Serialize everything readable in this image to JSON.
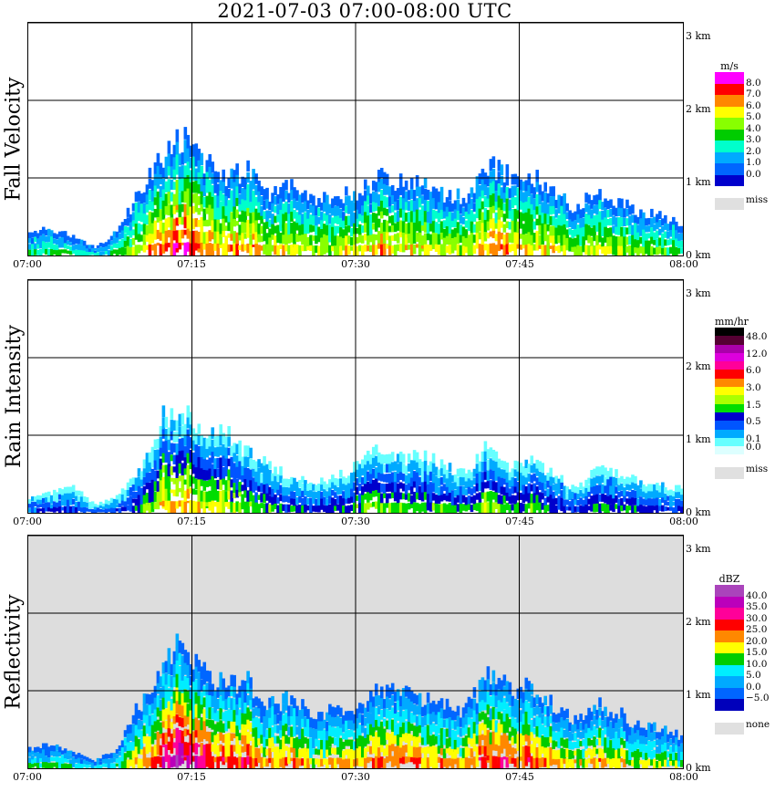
{
  "title": "2021-07-03   07:00-08:00 UTC",
  "chart_data": [
    {
      "type": "heatmap",
      "ylabel": "Fall Velocity",
      "xlabel": "",
      "xlim": [
        0,
        60
      ],
      "ylim": [
        0,
        3
      ],
      "x_ticks": [
        "07:00",
        "07:15",
        "07:30",
        "07:45",
        "08:00"
      ],
      "height_ticks": [
        "0 km",
        "1 km",
        "2 km",
        "3 km"
      ],
      "legend_unit": "m/s",
      "legend_labels": [
        "8.0",
        "7.0",
        "6.0",
        "5.0",
        "4.0",
        "3.0",
        "2.0",
        "1.0",
        "0.0"
      ],
      "legend_colors": [
        "#ff00ff",
        "#ff0000",
        "#ff8800",
        "#ffff00",
        "#88ff00",
        "#00cc00",
        "#00ffcc",
        "#00aaff",
        "#0066ff",
        "#0000cc"
      ],
      "missing_label": "miss",
      "background": "#ffffff",
      "echo_tops_km": [
        [
          0,
          0.3
        ],
        [
          2,
          0.35
        ],
        [
          4,
          0.25
        ],
        [
          6,
          0.1
        ],
        [
          8,
          0.3
        ],
        [
          10,
          0.8
        ],
        [
          12,
          1.3
        ],
        [
          14,
          1.5
        ],
        [
          16,
          1.2
        ],
        [
          18,
          1.0
        ],
        [
          20,
          1.1
        ],
        [
          22,
          0.8
        ],
        [
          24,
          0.9
        ],
        [
          26,
          0.7
        ],
        [
          28,
          0.75
        ],
        [
          30,
          0.8
        ],
        [
          32,
          1.0
        ],
        [
          34,
          0.95
        ],
        [
          36,
          0.9
        ],
        [
          38,
          0.8
        ],
        [
          40,
          0.75
        ],
        [
          42,
          1.2
        ],
        [
          44,
          1.0
        ],
        [
          46,
          1.05
        ],
        [
          48,
          0.8
        ],
        [
          50,
          0.6
        ],
        [
          52,
          0.85
        ],
        [
          54,
          0.7
        ],
        [
          56,
          0.55
        ],
        [
          58,
          0.5
        ],
        [
          60,
          0.4
        ]
      ]
    },
    {
      "type": "heatmap",
      "ylabel": "Rain Intensity",
      "xlabel": "",
      "xlim": [
        0,
        60
      ],
      "ylim": [
        0,
        3
      ],
      "x_ticks": [
        "07:00",
        "07:15",
        "07:30",
        "07:45",
        "08:00"
      ],
      "height_ticks": [
        "0 km",
        "1 km",
        "2 km",
        "3 km"
      ],
      "legend_unit": "mm/hr",
      "legend_labels": [
        "48.0",
        "",
        "12.0",
        "",
        "6.0",
        "",
        "3.0",
        "",
        "1.5",
        "",
        "0.5",
        "",
        "0.1",
        "0.0"
      ],
      "legend_colors": [
        "#000000",
        "#550033",
        "#aa00aa",
        "#dd00dd",
        "#ff0099",
        "#ff0000",
        "#ff8800",
        "#ffff00",
        "#aaff00",
        "#00dd00",
        "#0000cc",
        "#0055ff",
        "#00aaff",
        "#66ffff",
        "#ddffff"
      ],
      "missing_label": "miss",
      "background": "#ffffff",
      "echo_tops_km": [
        [
          0,
          0.2
        ],
        [
          2,
          0.25
        ],
        [
          4,
          0.35
        ],
        [
          6,
          0.1
        ],
        [
          8,
          0.2
        ],
        [
          10,
          0.5
        ],
        [
          12,
          1.2
        ],
        [
          14,
          1.3
        ],
        [
          16,
          1.1
        ],
        [
          18,
          1.0
        ],
        [
          20,
          0.8
        ],
        [
          22,
          0.6
        ],
        [
          24,
          0.45
        ],
        [
          26,
          0.4
        ],
        [
          28,
          0.45
        ],
        [
          30,
          0.6
        ],
        [
          32,
          0.8
        ],
        [
          34,
          0.7
        ],
        [
          36,
          0.75
        ],
        [
          38,
          0.6
        ],
        [
          40,
          0.5
        ],
        [
          42,
          0.9
        ],
        [
          44,
          0.6
        ],
        [
          46,
          0.65
        ],
        [
          48,
          0.5
        ],
        [
          50,
          0.3
        ],
        [
          52,
          0.55
        ],
        [
          54,
          0.5
        ],
        [
          56,
          0.4
        ],
        [
          58,
          0.35
        ],
        [
          60,
          0.3
        ]
      ]
    },
    {
      "type": "heatmap",
      "ylabel": "Reflectivity",
      "xlabel": "",
      "xlim": [
        0,
        60
      ],
      "ylim": [
        0,
        3
      ],
      "x_ticks": [
        "07:00",
        "07:15",
        "07:30",
        "07:45",
        "08:00"
      ],
      "height_ticks": [
        "0 km",
        "1 km",
        "2 km",
        "3 km"
      ],
      "legend_unit": "dBZ",
      "legend_labels": [
        "40.0",
        "35.0",
        "30.0",
        "25.0",
        "20.0",
        "15.0",
        "10.0",
        "5.0",
        "0.0",
        "−5.0"
      ],
      "legend_colors": [
        "#aa44bb",
        "#bb00bb",
        "#ff0099",
        "#ff0000",
        "#ff8800",
        "#ffff00",
        "#00cc00",
        "#00eeff",
        "#00aaff",
        "#0066ff",
        "#0000bb"
      ],
      "missing_label": "none",
      "background": "#dddddd",
      "echo_tops_km": [
        [
          0,
          0.25
        ],
        [
          2,
          0.3
        ],
        [
          4,
          0.2
        ],
        [
          6,
          0.1
        ],
        [
          8,
          0.25
        ],
        [
          10,
          0.8
        ],
        [
          12,
          1.3
        ],
        [
          14,
          1.6
        ],
        [
          16,
          1.25
        ],
        [
          18,
          1.05
        ],
        [
          20,
          1.1
        ],
        [
          22,
          0.8
        ],
        [
          24,
          0.9
        ],
        [
          26,
          0.7
        ],
        [
          28,
          0.75
        ],
        [
          30,
          0.8
        ],
        [
          32,
          1.0
        ],
        [
          34,
          0.95
        ],
        [
          36,
          0.9
        ],
        [
          38,
          0.8
        ],
        [
          40,
          0.75
        ],
        [
          42,
          1.2
        ],
        [
          44,
          1.0
        ],
        [
          46,
          1.05
        ],
        [
          48,
          0.8
        ],
        [
          50,
          0.6
        ],
        [
          52,
          0.85
        ],
        [
          54,
          0.7
        ],
        [
          56,
          0.55
        ],
        [
          58,
          0.5
        ],
        [
          60,
          0.4
        ]
      ]
    }
  ]
}
